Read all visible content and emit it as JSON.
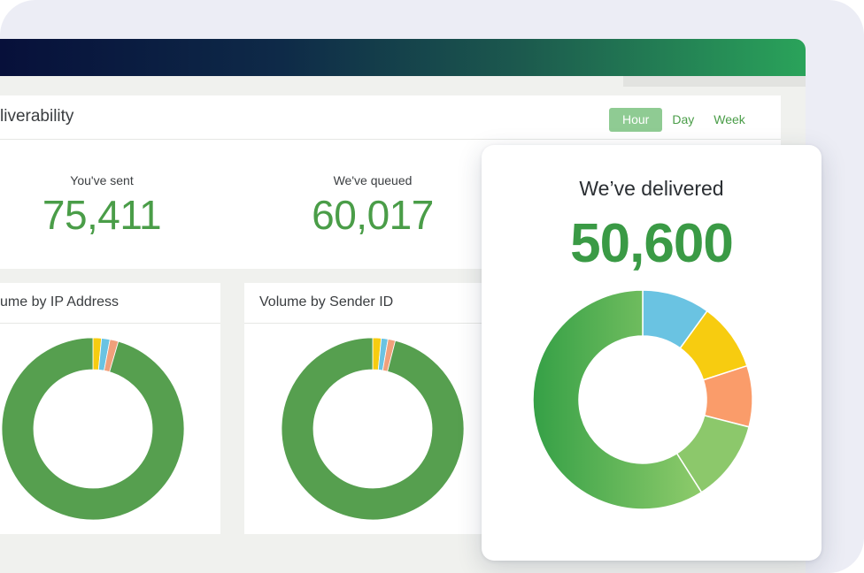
{
  "panel": {
    "title": "liverability",
    "range_tabs": [
      {
        "label": "Hour",
        "active": true
      },
      {
        "label": "Day",
        "active": false
      },
      {
        "label": "Week",
        "active": false
      }
    ]
  },
  "stats": [
    {
      "label": "You've sent",
      "value": "75,411"
    },
    {
      "label": "We've queued",
      "value": "60,017"
    }
  ],
  "cards": [
    {
      "title": "ume by IP Address"
    },
    {
      "title": "Volume by Sender ID"
    }
  ],
  "highlight": {
    "label": "We’ve delivered",
    "value": "50,600"
  },
  "colors": {
    "accent_green": "#4a9d48",
    "donut_green": "#569f4f",
    "blue": "#6ac3e2",
    "yellow": "#f7cc10",
    "orange": "#fa9c6a",
    "light_green": "#8cc86b"
  },
  "chart_data": [
    {
      "type": "pie",
      "title": "ume by IP Address",
      "values": [
        95.5,
        1.5,
        1.5,
        1.5
      ],
      "colors": [
        "#569f4f",
        "#f7cc10",
        "#6ac3e2",
        "#f0a07b"
      ]
    },
    {
      "type": "pie",
      "title": "Volume by Sender ID",
      "values": [
        96,
        1.5,
        1.2,
        1.3
      ],
      "colors": [
        "#569f4f",
        "#f7cc10",
        "#6ac3e2",
        "#f0a07b"
      ]
    },
    {
      "type": "pie",
      "title": "We’ve delivered",
      "values": [
        10,
        10,
        9,
        12,
        59
      ],
      "colors": [
        "#6ac3e2",
        "#f7cc10",
        "#fa9c6a",
        "#8cc86b",
        "#3aa04a"
      ]
    }
  ]
}
